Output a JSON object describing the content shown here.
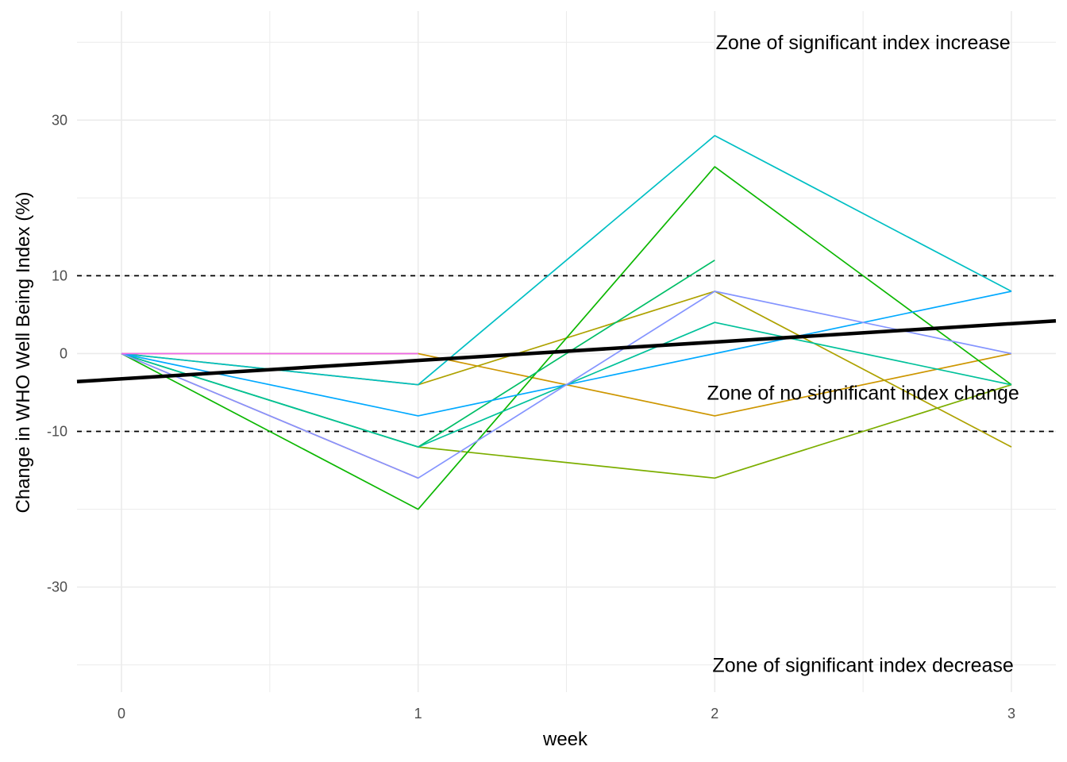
{
  "chart_data": {
    "type": "line",
    "title": "",
    "xlabel": "week",
    "ylabel": "Change in WHO Well Being Index (%)",
    "xlim": [
      -0.15,
      3.15
    ],
    "ylim": [
      -43.5,
      44
    ],
    "x_ticks": [
      0,
      1,
      2,
      3
    ],
    "x_tick_labels": [
      "0",
      "1",
      "2",
      "3"
    ],
    "y_ticks": [
      -30,
      -10,
      0,
      10,
      30
    ],
    "y_tick_labels": [
      "-30",
      "-10",
      "0",
      "10",
      "30"
    ],
    "y_minor_gridlines": [
      -40,
      -20,
      20,
      40
    ],
    "x_minor_gridlines": [
      0.5,
      1.5,
      2.5
    ],
    "grid": true,
    "legend": "none",
    "series": [
      {
        "color": "#F8766D",
        "x": [
          0,
          1
        ],
        "y": [
          0,
          -16
        ]
      },
      {
        "color": "#CD9600",
        "x": [
          0,
          1,
          2,
          3
        ],
        "y": [
          0,
          0,
          -8,
          0
        ]
      },
      {
        "color": "#AEA200",
        "x": [
          0,
          1,
          2,
          3
        ],
        "y": [
          0,
          -4,
          8,
          -12
        ]
      },
      {
        "color": "#7CAE00",
        "x": [
          0,
          1,
          2,
          3
        ],
        "y": [
          0,
          -12,
          -16,
          -4
        ]
      },
      {
        "color": "#0CB702",
        "x": [
          0,
          1,
          2,
          3
        ],
        "y": [
          0,
          -20,
          24,
          -4
        ]
      },
      {
        "color": "#00BE67",
        "x": [
          0,
          1,
          2
        ],
        "y": [
          0,
          -12,
          12
        ]
      },
      {
        "color": "#00C19A",
        "x": [
          0,
          1,
          2,
          3
        ],
        "y": [
          0,
          -12,
          4,
          -4
        ]
      },
      {
        "color": "#00BFC4",
        "x": [
          0,
          1,
          2,
          3
        ],
        "y": [
          0,
          -4,
          28,
          8
        ]
      },
      {
        "color": "#00A9FF",
        "x": [
          0,
          1,
          2,
          3
        ],
        "y": [
          0,
          -8,
          0,
          8
        ]
      },
      {
        "color": "#8494FF",
        "x": [
          0,
          1,
          2,
          3
        ],
        "y": [
          0,
          -16,
          8,
          0
        ]
      },
      {
        "color": "#ED68ED",
        "x": [
          0,
          1
        ],
        "y": [
          0,
          0
        ]
      }
    ],
    "trend_line": {
      "color": "#000000",
      "x": [
        -0.15,
        3.15
      ],
      "y": [
        -3.6,
        4.2
      ]
    },
    "reference_lines": [
      {
        "y": 10,
        "style": "dashed",
        "color": "#000000"
      },
      {
        "y": -10,
        "style": "dashed",
        "color": "#000000"
      }
    ],
    "annotations": [
      {
        "text": "Zone of significant index increase",
        "x": 2.5,
        "y": 40
      },
      {
        "text": "Zone of no significant index change",
        "x": 2.5,
        "y": -5
      },
      {
        "text": "Zone of significant index decrease",
        "x": 2.5,
        "y": -40
      }
    ]
  }
}
